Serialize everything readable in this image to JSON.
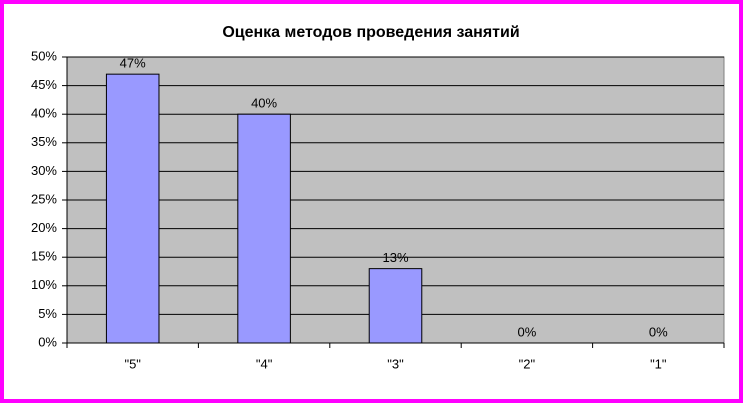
{
  "chart_data": {
    "type": "bar",
    "title": "Оценка методов проведения занятий",
    "categories": [
      "\"5\"",
      "\"4\"",
      "\"3\"",
      "\"2\"",
      "\"1\""
    ],
    "values": [
      47,
      40,
      13,
      0,
      0
    ],
    "value_labels": [
      "47%",
      "40%",
      "13%",
      "0%",
      "0%"
    ],
    "color": "#9999ff",
    "ylim": [
      0,
      50
    ],
    "yticks": [
      {
        "value": 0,
        "label": "0%"
      },
      {
        "value": 5,
        "label": "5%"
      },
      {
        "value": 10,
        "label": "10%"
      },
      {
        "value": 15,
        "label": "15%"
      },
      {
        "value": 20,
        "label": "20%"
      },
      {
        "value": 25,
        "label": "25%"
      },
      {
        "value": 30,
        "label": "30%"
      },
      {
        "value": 35,
        "label": "35%"
      },
      {
        "value": 40,
        "label": "40%"
      },
      {
        "value": 45,
        "label": "45%"
      },
      {
        "value": 50,
        "label": "50%"
      }
    ],
    "grid": true
  }
}
